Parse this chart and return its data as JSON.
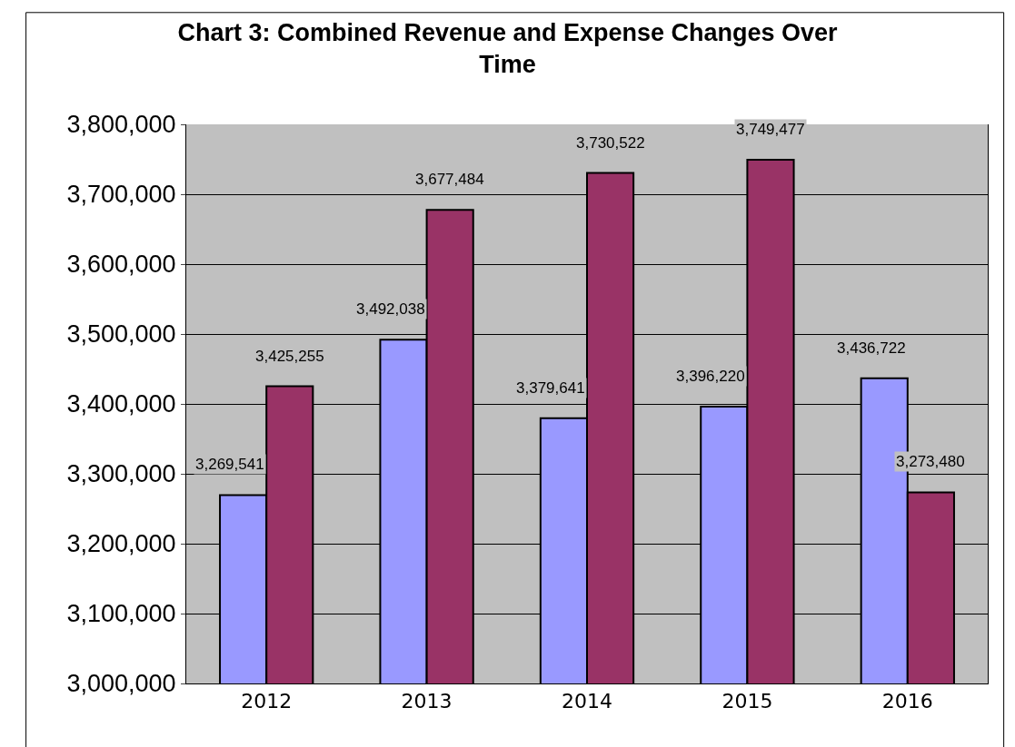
{
  "chart_data": {
    "type": "bar",
    "title": "Chart 3: Combined Revenue and Expense Changes Over Time",
    "categories": [
      "2012",
      "2013",
      "2014",
      "2015",
      "2016"
    ],
    "series": [
      {
        "color": "#9999ff",
        "values": [
          3269541,
          3492038,
          3379641,
          3396220,
          3436722
        ]
      },
      {
        "color": "#993366",
        "values": [
          3425255,
          3677484,
          3730522,
          3749477,
          3273480
        ]
      }
    ],
    "ylim": [
      3000000,
      3800000
    ],
    "yticks": [
      {
        "value": 3000000,
        "label": "3,000,000"
      },
      {
        "value": 3100000,
        "label": "3,100,000"
      },
      {
        "value": 3200000,
        "label": "3,200,000"
      },
      {
        "value": 3300000,
        "label": "3,300,000"
      },
      {
        "value": 3400000,
        "label": "3,400,000"
      },
      {
        "value": 3500000,
        "label": "3,500,000"
      },
      {
        "value": 3600000,
        "label": "3,600,000"
      },
      {
        "value": 3700000,
        "label": "3,700,000"
      },
      {
        "value": 3800000,
        "label": "3,800,000"
      }
    ],
    "grid": "y",
    "value_labels": [
      [
        "3,269,541",
        "3,492,038",
        "3,379,641",
        "3,396,220",
        "3,436,722"
      ],
      [
        "3,425,255",
        "3,677,484",
        "3,730,522",
        "3,749,477",
        "3,273,480"
      ]
    ]
  }
}
